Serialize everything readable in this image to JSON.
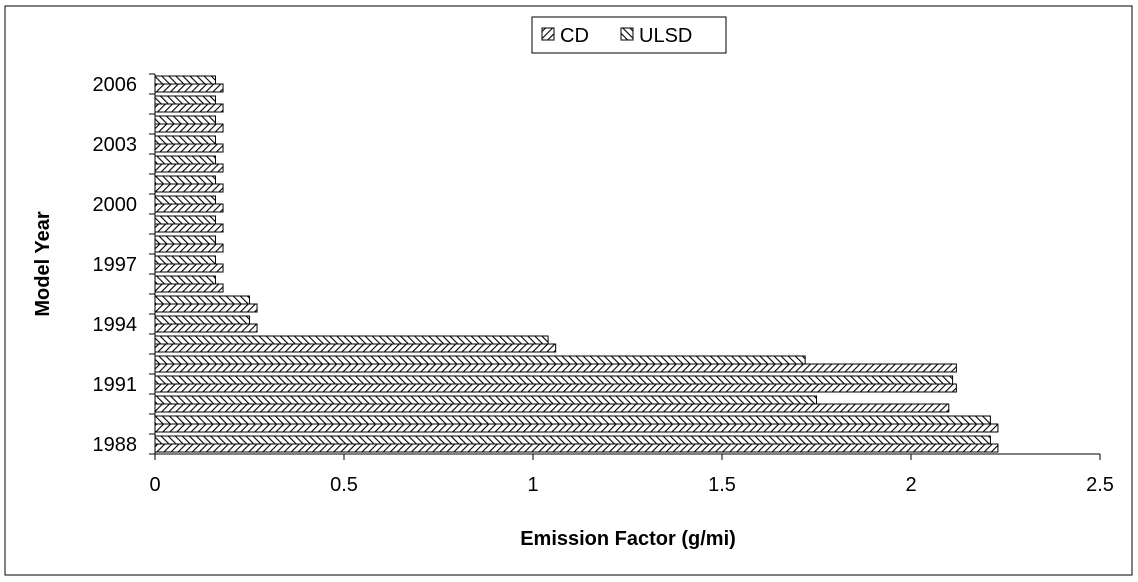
{
  "chart_data": {
    "type": "bar",
    "orientation": "horizontal",
    "title": "",
    "xlabel": "Emission Factor (g/mi)",
    "ylabel": "Model Year",
    "xlim": [
      0,
      2.5
    ],
    "x_ticks": [
      "0",
      "0.5",
      "1",
      "1.5",
      "2",
      "2.5"
    ],
    "y_tick_labels": [
      "1988",
      "1991",
      "1994",
      "1997",
      "2000",
      "2003",
      "2006"
    ],
    "categories": [
      "1988",
      "1989",
      "1990",
      "1991",
      "1992",
      "1993",
      "1994",
      "1995",
      "1996",
      "1997",
      "1998",
      "1999",
      "2000",
      "2001",
      "2002",
      "2003",
      "2004",
      "2005",
      "2006"
    ],
    "series": [
      {
        "name": "CD",
        "pattern": "hatch-right",
        "values": [
          2.23,
          2.23,
          2.1,
          2.12,
          2.12,
          1.06,
          0.27,
          0.27,
          0.18,
          0.18,
          0.18,
          0.18,
          0.18,
          0.18,
          0.18,
          0.18,
          0.18,
          0.18,
          0.18
        ]
      },
      {
        "name": "ULSD",
        "pattern": "hatch-left",
        "values": [
          2.21,
          2.21,
          1.75,
          2.11,
          1.72,
          1.04,
          0.25,
          0.25,
          0.16,
          0.16,
          0.16,
          0.16,
          0.16,
          0.16,
          0.16,
          0.16,
          0.16,
          0.16,
          0.16
        ]
      }
    ],
    "grid": false,
    "legend_position": "top-center"
  }
}
